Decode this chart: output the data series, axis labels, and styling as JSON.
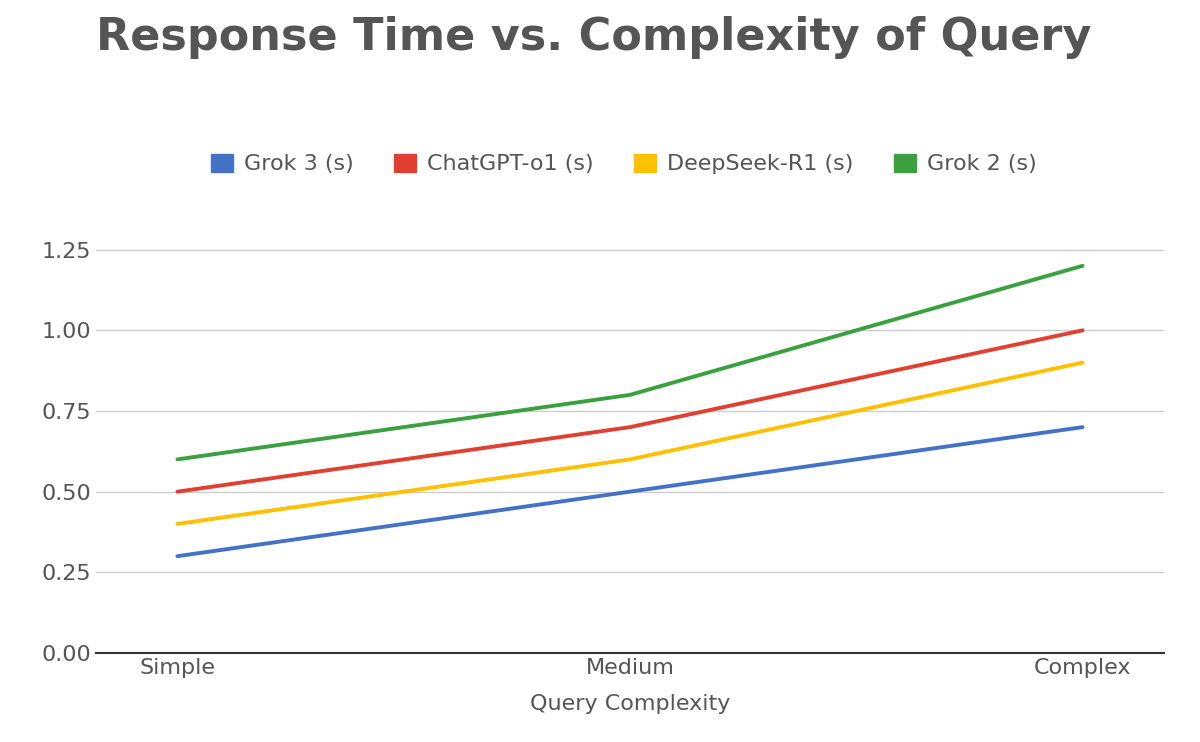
{
  "title": "Response Time vs. Complexity of Query",
  "xlabel": "Query Complexity",
  "categories": [
    "Simple",
    "Medium",
    "Complex"
  ],
  "series": [
    {
      "label": "Grok 3 (s)",
      "color": "#4472C4",
      "values": [
        0.3,
        0.5,
        0.7
      ]
    },
    {
      "label": "ChatGPT-o1 (s)",
      "color": "#E04030",
      "values": [
        0.5,
        0.7,
        1.0
      ]
    },
    {
      "label": "DeepSeek-R1 (s)",
      "color": "#FFC000",
      "values": [
        0.4,
        0.6,
        0.9
      ]
    },
    {
      "label": "Grok 2 (s)",
      "color": "#3AA040",
      "values": [
        0.6,
        0.8,
        1.2
      ]
    }
  ],
  "ylim": [
    0.0,
    1.38
  ],
  "yticks": [
    0.0,
    0.25,
    0.5,
    0.75,
    1.0,
    1.25
  ],
  "background_color": "#FFFFFF",
  "grid_color": "#CCCCCC",
  "title_fontsize": 32,
  "label_fontsize": 16,
  "tick_fontsize": 16,
  "legend_fontsize": 16,
  "line_width": 2.8
}
